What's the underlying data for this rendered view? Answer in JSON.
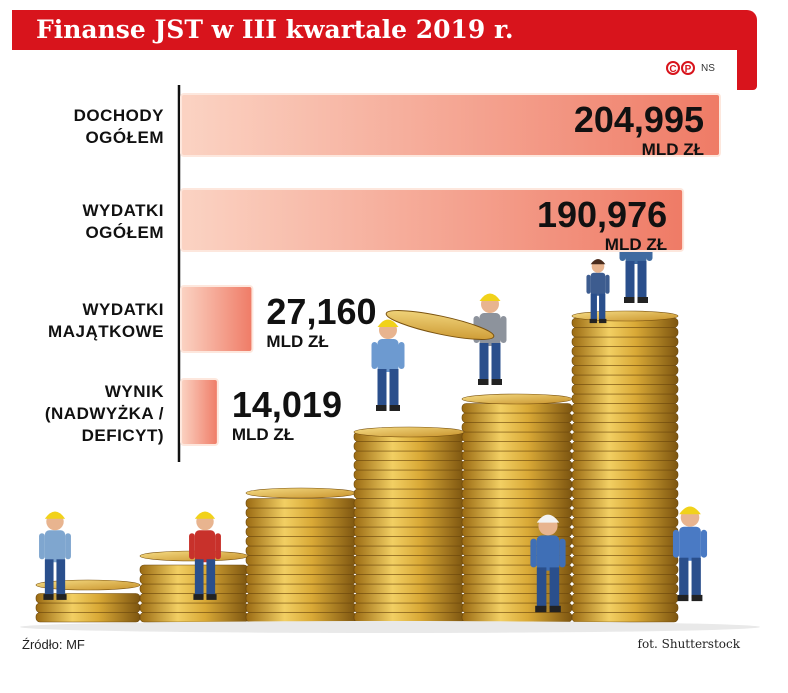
{
  "title": "Finanse JST w III kwartale 2019 r.",
  "copyright": {
    "c1": "C",
    "c2": "P",
    "ns": "NS"
  },
  "source": "Źródło: MF",
  "photo_credit": "fot. Shutterstock",
  "colors": {
    "title_bg": "#d8141c",
    "bar_light": "#fbd3c3",
    "bar_dark": "#ef7b66",
    "axis": "#111111"
  },
  "chart_data": {
    "type": "bar",
    "orientation": "horizontal",
    "title": "Finanse JST w III kwartale 2019 r.",
    "categories": [
      [
        "DOCHODY",
        "OGÓŁEM"
      ],
      [
        "WYDATKI",
        "OGÓŁEM"
      ],
      [
        "WYDATKI",
        "MAJĄTKOWE"
      ],
      [
        "WYNIK",
        "(NADWYŻKA /",
        "DEFICYT)"
      ]
    ],
    "values": [
      204.995,
      190.976,
      27.16,
      14.019
    ],
    "value_labels": [
      "204,995",
      "190,976",
      "27,160",
      "14,019"
    ],
    "unit_label": "MLD ZŁ",
    "xlim": [
      0,
      204.995
    ]
  }
}
